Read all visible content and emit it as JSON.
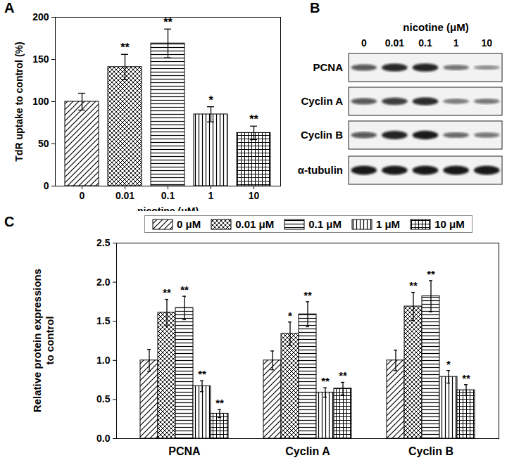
{
  "chart_data": [
    {
      "type": "bar",
      "title": "A",
      "categories": [
        "0",
        "0.01",
        "0.1",
        "1",
        "10"
      ],
      "values": [
        100,
        141,
        169,
        85,
        63
      ],
      "errors": [
        10,
        15,
        17,
        9,
        8
      ],
      "significance": [
        null,
        "**",
        "**",
        "*",
        "**"
      ],
      "x_label": "nicotine (μM)",
      "y_label": "TdR uptake to control (%)",
      "ylim": [
        0,
        200
      ],
      "yticks": [
        0,
        50,
        100,
        150,
        200
      ]
    },
    {
      "type": "bar",
      "title": "C",
      "categories": [
        "PCNA",
        "Cyclin A",
        "Cyclin B"
      ],
      "series": [
        {
          "name": "0 μM",
          "values": [
            1.0,
            1.0,
            1.0
          ],
          "errors": [
            0.14,
            0.12,
            0.13
          ],
          "significance": [
            null,
            null,
            null
          ]
        },
        {
          "name": "0.01 μM",
          "values": [
            1.61,
            1.34,
            1.69
          ],
          "errors": [
            0.17,
            0.15,
            0.18
          ],
          "significance": [
            "**",
            "*",
            "**"
          ]
        },
        {
          "name": "0.1 μM",
          "values": [
            1.67,
            1.59,
            1.82
          ],
          "errors": [
            0.15,
            0.16,
            0.2
          ],
          "significance": [
            "**",
            "**",
            "**"
          ]
        },
        {
          "name": "1 μM",
          "values": [
            0.67,
            0.59,
            0.79
          ],
          "errors": [
            0.07,
            0.06,
            0.08
          ],
          "significance": [
            "**",
            "**",
            "*"
          ]
        },
        {
          "name": "10 μM",
          "values": [
            0.32,
            0.64,
            0.62
          ],
          "errors": [
            0.05,
            0.08,
            0.07
          ],
          "significance": [
            "**",
            "**",
            "**"
          ]
        }
      ],
      "y_label": "Relative protein expressions\nto control",
      "ylim": [
        0,
        2.5
      ],
      "yticks": [
        {
          "value": 0,
          "label": "0.0"
        },
        0.5,
        {
          "value": 1,
          "label": "1.0"
        },
        1.5,
        {
          "value": 2,
          "label": "2.0"
        },
        2.5
      ],
      "legend": "top"
    }
  ],
  "blot": {
    "title": "B",
    "lane_title": "nicotine (μM)",
    "lanes": [
      "0",
      "0.01",
      "0.1",
      "1",
      "10"
    ],
    "rows": [
      "PCNA",
      "Cyclin A",
      "Cyclin B",
      "α-tubulin"
    ]
  }
}
